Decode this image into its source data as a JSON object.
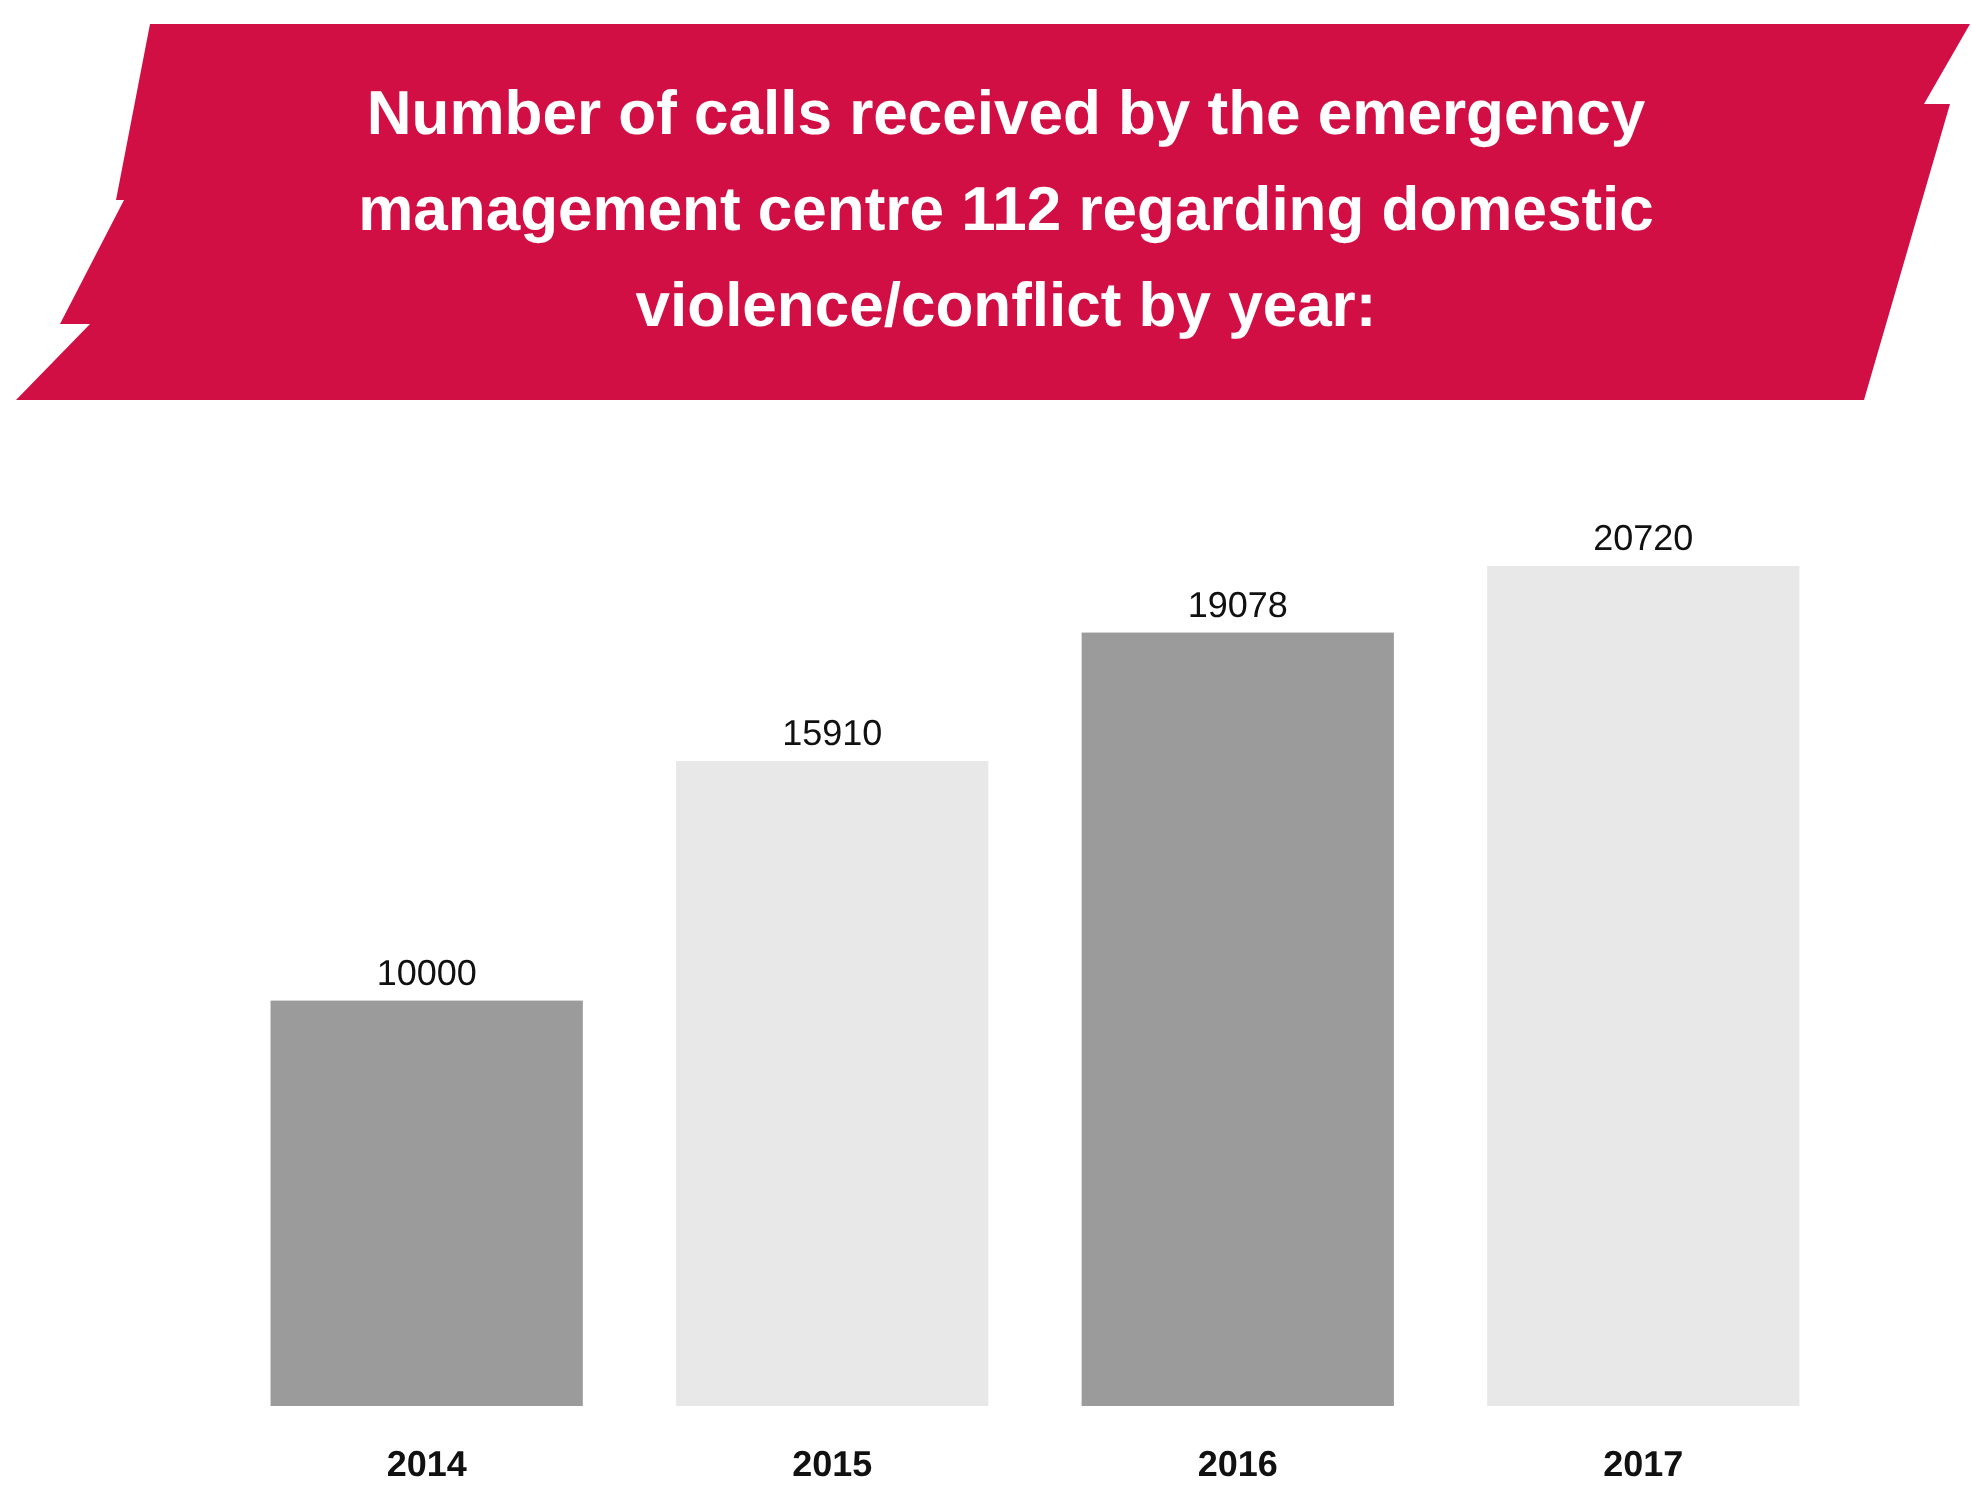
{
  "chart_data": {
    "type": "bar",
    "title": "Number of calls received by the emergency management centre 112 regarding domestic violence/conflict by year:",
    "categories": [
      "2014",
      "2015",
      "2016",
      "2017"
    ],
    "values": [
      10000,
      15910,
      19078,
      20720
    ],
    "colors": [
      "#9b9b9b",
      "#e8e8e8",
      "#9b9b9b",
      "#e8e8e8"
    ],
    "data_labels": true
  }
}
